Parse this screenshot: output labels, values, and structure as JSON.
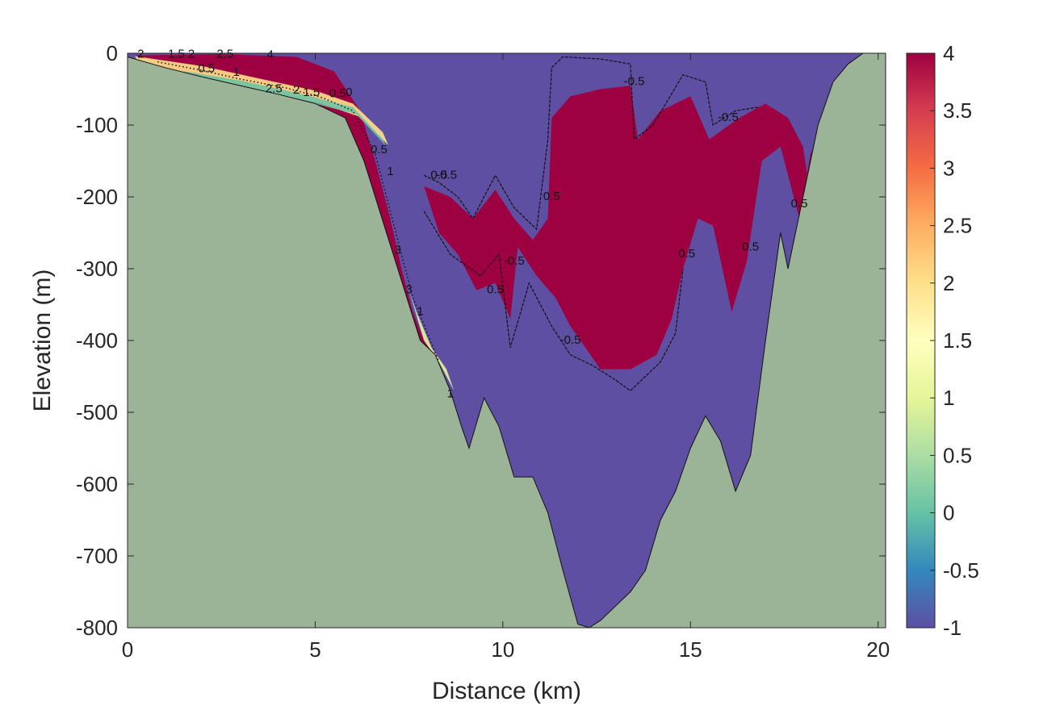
{
  "chart_data": {
    "type": "heatmap",
    "title": "",
    "xlabel": "Distance (km)",
    "ylabel": "Elevation (m)",
    "xlim": [
      0,
      20.2
    ],
    "ylim": [
      -800,
      0
    ],
    "x_ticks": [
      0,
      5,
      10,
      15,
      20
    ],
    "x_tick_labels": [
      "0",
      "5",
      "10",
      "15",
      "20"
    ],
    "y_ticks": [
      0,
      -100,
      -200,
      -300,
      -400,
      -500,
      -600,
      -700,
      -800
    ],
    "y_tick_labels": [
      "0",
      "-100",
      "-200",
      "-300",
      "-400",
      "-500",
      "-600",
      "-700",
      "-800"
    ],
    "colorbar": {
      "colormap": "Spectral (reversed)",
      "range": [
        -1,
        4
      ],
      "ticks": [
        4,
        3.5,
        3,
        2.5,
        2,
        1.5,
        1,
        0.5,
        0,
        -0.5,
        -1
      ],
      "tick_labels": [
        "4",
        "3.5",
        "3",
        "2.5",
        "2",
        "1.5",
        "1",
        "0.5",
        "0",
        "-0.5",
        "-1"
      ]
    },
    "colors": {
      "seabed": "#9bb497",
      "low_value": "#5e4fa2",
      "high_value": "#9e0142"
    },
    "bathymetry": [
      [
        0,
        -5
      ],
      [
        1,
        -20
      ],
      [
        2,
        -33
      ],
      [
        3,
        -45
      ],
      [
        4,
        -57
      ],
      [
        5,
        -70
      ],
      [
        5.8,
        -90
      ],
      [
        6.3,
        -150
      ],
      [
        6.6,
        -200
      ],
      [
        6.9,
        -250
      ],
      [
        7.2,
        -300
      ],
      [
        7.5,
        -350
      ],
      [
        7.8,
        -400
      ],
      [
        8.2,
        -420
      ],
      [
        8.6,
        -470
      ],
      [
        8.9,
        -520
      ],
      [
        9.1,
        -550
      ],
      [
        9.5,
        -480
      ],
      [
        9.9,
        -520
      ],
      [
        10.3,
        -590
      ],
      [
        10.8,
        -590
      ],
      [
        11.2,
        -640
      ],
      [
        11.6,
        -720
      ],
      [
        12,
        -795
      ],
      [
        12.3,
        -800
      ],
      [
        12.6,
        -790
      ],
      [
        13,
        -770
      ],
      [
        13.4,
        -750
      ],
      [
        13.8,
        -720
      ],
      [
        14.2,
        -650
      ],
      [
        14.6,
        -610
      ],
      [
        15,
        -550
      ],
      [
        15.4,
        -505
      ],
      [
        15.8,
        -540
      ],
      [
        16.2,
        -610
      ],
      [
        16.6,
        -560
      ],
      [
        17,
        -400
      ],
      [
        17.4,
        -250
      ],
      [
        17.6,
        -300
      ],
      [
        18,
        -200
      ],
      [
        18.4,
        -100
      ],
      [
        18.8,
        -40
      ],
      [
        19.2,
        -15
      ],
      [
        19.6,
        0
      ],
      [
        20.2,
        0
      ]
    ],
    "high_zones": [
      {
        "name": "slope plume",
        "points": [
          [
            0.2,
            -3
          ],
          [
            2.5,
            -1
          ],
          [
            4.5,
            -5
          ],
          [
            5.5,
            -25
          ],
          [
            6.2,
            -80
          ],
          [
            6.6,
            -150
          ],
          [
            7,
            -230
          ],
          [
            7.3,
            -300
          ],
          [
            7.6,
            -360
          ],
          [
            7.9,
            -400
          ],
          [
            8.2,
            -420
          ],
          [
            7.8,
            -400
          ],
          [
            7.5,
            -350
          ],
          [
            7.2,
            -300
          ],
          [
            6.9,
            -250
          ],
          [
            6.6,
            -200
          ],
          [
            6.3,
            -150
          ],
          [
            5.8,
            -90
          ],
          [
            5,
            -70
          ],
          [
            3,
            -45
          ],
          [
            1,
            -20
          ]
        ]
      },
      {
        "name": "interior warm mass",
        "points": [
          [
            7.9,
            -185
          ],
          [
            8.6,
            -200
          ],
          [
            9.2,
            -230
          ],
          [
            9.8,
            -190
          ],
          [
            10.3,
            -230
          ],
          [
            10.8,
            -260
          ],
          [
            11.2,
            -230
          ],
          [
            11.3,
            -90
          ],
          [
            11.8,
            -60
          ],
          [
            12.6,
            -50
          ],
          [
            13.4,
            -45
          ],
          [
            13.6,
            -120
          ],
          [
            14.2,
            -80
          ],
          [
            15,
            -60
          ],
          [
            15.5,
            -120
          ],
          [
            16.3,
            -90
          ],
          [
            17,
            -70
          ],
          [
            17.6,
            -90
          ],
          [
            18,
            -130
          ],
          [
            18.2,
            -200
          ],
          [
            18.4,
            -100
          ],
          [
            18.8,
            -40
          ],
          [
            19.2,
            -20
          ],
          [
            19.5,
            -10
          ],
          [
            19.2,
            -30
          ],
          [
            18.6,
            -90
          ],
          [
            18.2,
            -140
          ],
          [
            17.9,
            -230
          ],
          [
            17.4,
            -130
          ],
          [
            16.9,
            -150
          ],
          [
            16.5,
            -290
          ],
          [
            16.1,
            -360
          ],
          [
            15.6,
            -240
          ],
          [
            15.2,
            -230
          ],
          [
            14.8,
            -300
          ],
          [
            14.5,
            -370
          ],
          [
            14.1,
            -420
          ],
          [
            13.4,
            -440
          ],
          [
            12.6,
            -440
          ],
          [
            12.2,
            -410
          ],
          [
            11.8,
            -380
          ],
          [
            11.4,
            -340
          ],
          [
            10.9,
            -310
          ],
          [
            10.4,
            -270
          ],
          [
            10.2,
            -370
          ],
          [
            9.8,
            -320
          ],
          [
            9.3,
            -330
          ],
          [
            8.8,
            -280
          ],
          [
            8.3,
            -250
          ]
        ]
      }
    ],
    "contour_labels": [
      {
        "text": "2",
        "x": 0.35,
        "y": -2
      },
      {
        "text": "1.5",
        "x": 1.3,
        "y": -2
      },
      {
        "text": "2",
        "x": 1.7,
        "y": -2
      },
      {
        "text": "2.5",
        "x": 2.6,
        "y": -2
      },
      {
        "text": "4",
        "x": 3.8,
        "y": -3
      },
      {
        "text": "0.5",
        "x": 2.1,
        "y": -22
      },
      {
        "text": "1",
        "x": 2.9,
        "y": -27
      },
      {
        "text": "2.5",
        "x": 3.9,
        "y": -50
      },
      {
        "text": "2",
        "x": 4.5,
        "y": -52
      },
      {
        "text": "1.5",
        "x": 4.9,
        "y": -55
      },
      {
        "text": "0.5",
        "x": 5.6,
        "y": -57
      },
      {
        "text": "0",
        "x": 5.9,
        "y": -55
      },
      {
        "text": "0.5",
        "x": 6.7,
        "y": -135
      },
      {
        "text": "1",
        "x": 7.0,
        "y": -165
      },
      {
        "text": "3",
        "x": 7.2,
        "y": -275
      },
      {
        "text": "3",
        "x": 7.5,
        "y": -330
      },
      {
        "text": "1",
        "x": 7.8,
        "y": -360
      },
      {
        "text": "1",
        "x": 8.6,
        "y": -475
      },
      {
        "text": "0.5",
        "x": 8.3,
        "y": -170
      },
      {
        "text": "-0.5",
        "x": 8.5,
        "y": -170
      },
      {
        "text": "0.5",
        "x": 11.3,
        "y": -200
      },
      {
        "text": "-0.5",
        "x": 13.5,
        "y": -40
      },
      {
        "text": "0.5",
        "x": 14.9,
        "y": -280
      },
      {
        "text": "-0.5",
        "x": 16.0,
        "y": -90
      },
      {
        "text": "0.5",
        "x": 16.6,
        "y": -270
      },
      {
        "text": "0.5",
        "x": 17.9,
        "y": -210
      },
      {
        "text": "-0.5",
        "x": 10.3,
        "y": -290
      },
      {
        "text": "-0.5",
        "x": 11.8,
        "y": -400
      },
      {
        "text": "0.5",
        "x": 9.8,
        "y": -330
      }
    ],
    "contour_lines": [
      [
        [
          7.9,
          -170
        ],
        [
          8.3,
          -180
        ],
        [
          8.8,
          -200
        ],
        [
          9.2,
          -230
        ],
        [
          9.8,
          -170
        ],
        [
          10.3,
          -215
        ],
        [
          10.9,
          -245
        ],
        [
          11.2,
          -120
        ],
        [
          11.3,
          -20
        ],
        [
          11.6,
          -5
        ],
        [
          12.6,
          -8
        ],
        [
          13.4,
          -15
        ],
        [
          13.5,
          -120
        ],
        [
          14.0,
          -100
        ],
        [
          14.8,
          -30
        ],
        [
          15.4,
          -40
        ],
        [
          15.6,
          -100
        ],
        [
          16.2,
          -80
        ],
        [
          16.8,
          -75
        ]
      ],
      [
        [
          7.9,
          -220
        ],
        [
          8.6,
          -280
        ],
        [
          9.4,
          -310
        ],
        [
          9.9,
          -280
        ],
        [
          10.2,
          -410
        ],
        [
          10.7,
          -320
        ],
        [
          11.3,
          -380
        ],
        [
          11.8,
          -420
        ],
        [
          12.4,
          -435
        ],
        [
          13,
          -455
        ],
        [
          13.4,
          -470
        ],
        [
          13.7,
          -455
        ],
        [
          14.2,
          -430
        ],
        [
          14.6,
          -390
        ],
        [
          14.8,
          -300
        ]
      ]
    ]
  }
}
